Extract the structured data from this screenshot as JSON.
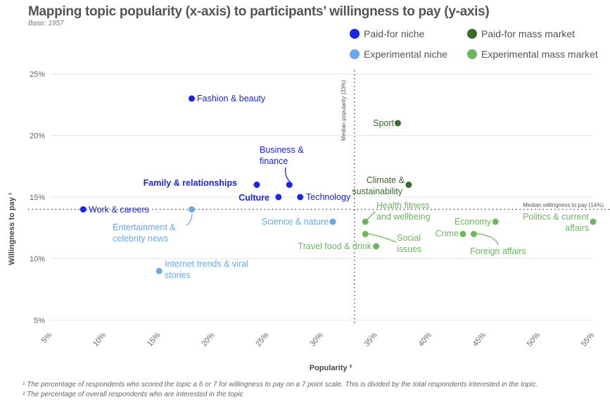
{
  "title": "Mapping topic popularity (x-axis) to participants’ willingness to pay (y-axis)",
  "base": "Base: 1957",
  "footnotes": [
    "¹ The percentage of respondents who scored the topic a 6 or 7 for willingness to pay on a 7 point scale. This is divided by the total respondents interested in the topic.",
    "² The percentage of overall respondents who are interested in the topic"
  ],
  "chart_data": {
    "type": "scatter",
    "title": "Mapping topic popularity (x-axis) to participants’ willingness to pay (y-axis)",
    "xlabel": "Popularity ²",
    "ylabel": "Willingness to pay ¹",
    "xlim": [
      5,
      55
    ],
    "ylim": [
      5,
      25
    ],
    "x_ticks": [
      "5%",
      "10%",
      "15%",
      "20%",
      "25%",
      "30%",
      "35%",
      "40%",
      "45%",
      "50%",
      "55%"
    ],
    "y_ticks": [
      "5%",
      "10%",
      "15%",
      "20%",
      "25%"
    ],
    "grid": "horizontal",
    "legend_placement": "top-right",
    "reference_lines": {
      "median_popularity": {
        "value": 33,
        "label": "Median popularity (33%)"
      },
      "median_willingness": {
        "value": 14,
        "label": "Median willingness to pay (14%)"
      }
    },
    "categories": [
      {
        "name": "Paid-for niche",
        "color": "#1a23f0"
      },
      {
        "name": "Paid-for mass market",
        "color": "#3a6a2c"
      },
      {
        "name": "Experimental niche",
        "color": "#6aa8ee"
      },
      {
        "name": "Experimental mass market",
        "color": "#6cb65c"
      }
    ],
    "points": [
      {
        "label": "Fashion & beauty",
        "x": 18,
        "y": 23,
        "category": 0
      },
      {
        "label": "Work & careers",
        "x": 8,
        "y": 14,
        "category": 0
      },
      {
        "label": "Family & relationships",
        "x": 24,
        "y": 16,
        "category": 0
      },
      {
        "label": "Business & finance",
        "x": 27,
        "y": 16,
        "category": 0
      },
      {
        "label": "Culture",
        "x": 26,
        "y": 15,
        "category": 0
      },
      {
        "label": "Technology",
        "x": 28,
        "y": 15,
        "category": 0
      },
      {
        "label": "Entertainment & celebrity news",
        "x": 18,
        "y": 14,
        "category": 2
      },
      {
        "label": "Internet trends & viral stories",
        "x": 15,
        "y": 9,
        "category": 2
      },
      {
        "label": "Science & nature",
        "x": 31,
        "y": 13,
        "category": 2
      },
      {
        "label": "Sport",
        "x": 37,
        "y": 21,
        "category": 1
      },
      {
        "label": "Climate & sustainability",
        "x": 38,
        "y": 16,
        "category": 1
      },
      {
        "label": "Health fitness and wellbeing",
        "x": 34,
        "y": 13,
        "category": 3
      },
      {
        "label": "Social issues",
        "x": 34,
        "y": 12,
        "category": 3
      },
      {
        "label": "Travel food & drink",
        "x": 35,
        "y": 11,
        "category": 3
      },
      {
        "label": "Crime",
        "x": 43,
        "y": 12,
        "category": 3
      },
      {
        "label": "Foreign affairs",
        "x": 44,
        "y": 12,
        "category": 3
      },
      {
        "label": "Economy",
        "x": 46,
        "y": 13,
        "category": 3
      },
      {
        "label": "Politics & current affairs",
        "x": 55,
        "y": 13,
        "category": 3
      }
    ]
  }
}
